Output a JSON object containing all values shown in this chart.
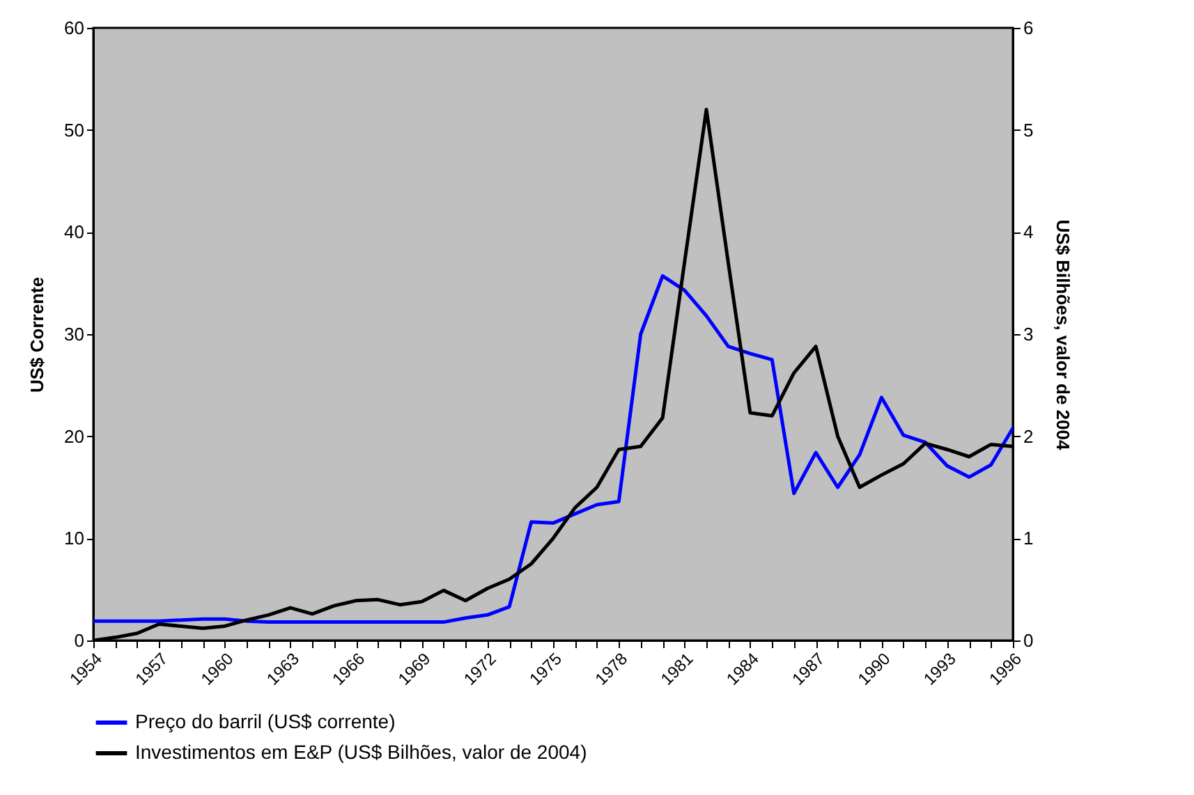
{
  "chart_data": {
    "type": "line",
    "ylabel": "US$ Corrente",
    "y2label": "US$ Bilhões, valor de 2004",
    "x": [
      1954,
      1955,
      1956,
      1957,
      1958,
      1959,
      1960,
      1961,
      1962,
      1963,
      1964,
      1965,
      1966,
      1967,
      1968,
      1969,
      1970,
      1971,
      1972,
      1973,
      1974,
      1975,
      1976,
      1977,
      1978,
      1979,
      1980,
      1981,
      1982,
      1983,
      1984,
      1985,
      1986,
      1987,
      1988,
      1989,
      1990,
      1991,
      1992,
      1993,
      1994,
      1995,
      1996
    ],
    "xlim": [
      1954,
      1996
    ],
    "xticks": [
      1954,
      {
        "value": 1955,
        "label": null
      },
      {
        "value": 1956,
        "label": null
      },
      1957,
      {
        "value": 1958,
        "label": null
      },
      {
        "value": 1959,
        "label": null
      },
      1960,
      {
        "value": 1961,
        "label": null
      },
      {
        "value": 1962,
        "label": null
      },
      1963,
      {
        "value": 1964,
        "label": null
      },
      {
        "value": 1965,
        "label": null
      },
      1966,
      {
        "value": 1967,
        "label": null
      },
      {
        "value": 1968,
        "label": null
      },
      1969,
      {
        "value": 1970,
        "label": null
      },
      {
        "value": 1971,
        "label": null
      },
      1972,
      {
        "value": 1973,
        "label": null
      },
      {
        "value": 1974,
        "label": null
      },
      1975,
      {
        "value": 1976,
        "label": null
      },
      {
        "value": 1977,
        "label": null
      },
      1978,
      {
        "value": 1979,
        "label": null
      },
      {
        "value": 1980,
        "label": null
      },
      1981,
      {
        "value": 1982,
        "label": null
      },
      {
        "value": 1983,
        "label": null
      },
      1984,
      {
        "value": 1985,
        "label": null
      },
      {
        "value": 1986,
        "label": null
      },
      1987,
      {
        "value": 1988,
        "label": null
      },
      {
        "value": 1989,
        "label": null
      },
      1990,
      {
        "value": 1991,
        "label": null
      },
      {
        "value": 1992,
        "label": null
      },
      1993,
      {
        "value": 1994,
        "label": null
      },
      {
        "value": 1995,
        "label": null
      },
      1996
    ],
    "ylim": [
      0,
      60
    ],
    "yticks": [
      0,
      10,
      20,
      30,
      40,
      50,
      60
    ],
    "y2lim": [
      0,
      6
    ],
    "y2ticks": [
      0,
      1,
      2,
      3,
      4,
      5,
      6
    ],
    "legend": "bottom",
    "line_style": "solid",
    "series": [
      {
        "name": "Preço do barril (US$ corrente)",
        "color": "#0000ff",
        "values": [
          1.9,
          1.9,
          1.9,
          1.9,
          2.0,
          2.1,
          2.1,
          1.9,
          1.8,
          1.8,
          1.8,
          1.8,
          1.8,
          1.8,
          1.8,
          1.8,
          1.8,
          2.2,
          2.5,
          3.3,
          11.6,
          11.5,
          12.4,
          13.3,
          13.6,
          30.0,
          35.7,
          34.3,
          31.8,
          28.8,
          28.1,
          27.5,
          14.4,
          18.4,
          15.0,
          18.2,
          23.8,
          20.1,
          19.4,
          17.1,
          16.0,
          17.2,
          20.8
        ]
      },
      {
        "name": "Investimentos em E&P (US$ Bilhões, valor de 2004)",
        "color": "#000000",
        "axis": "y2",
        "values": [
          0.0,
          0.03,
          0.07,
          0.16,
          0.14,
          0.12,
          0.14,
          0.2,
          0.25,
          0.32,
          0.26,
          0.34,
          0.39,
          0.4,
          0.35,
          0.38,
          0.49,
          0.39,
          0.51,
          0.6,
          0.75,
          1.0,
          1.3,
          1.5,
          1.87,
          1.9,
          2.18,
          3.7,
          5.2,
          3.7,
          2.23,
          2.2,
          2.62,
          2.88,
          2.0,
          1.5,
          1.62,
          1.73,
          1.93,
          1.87,
          1.8,
          1.92,
          1.9
        ]
      }
    ]
  }
}
